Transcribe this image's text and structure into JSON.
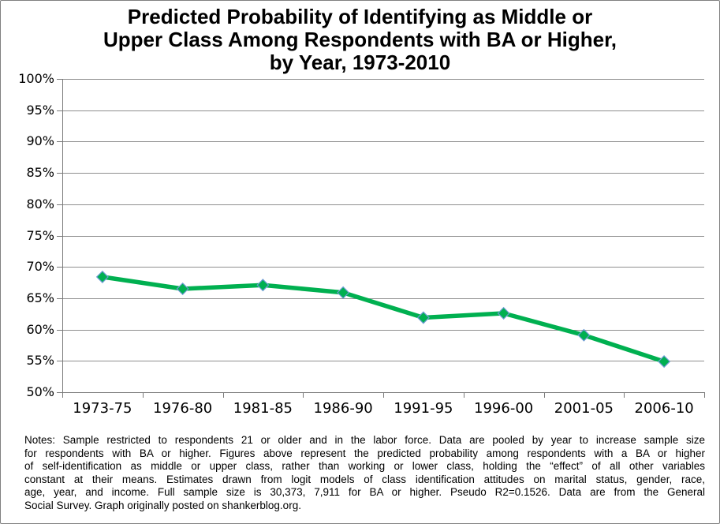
{
  "title": {
    "lines": [
      "Predicted Probability of Identifying as Middle or",
      "Upper Class Among Respondents with BA or Higher,",
      "by Year, 1973-2010"
    ]
  },
  "chart_data": {
    "type": "line",
    "title": "Predicted Probability of Identifying as Middle or Upper Class Among Respondents with BA or Higher, by Year, 1973-2010",
    "categories": [
      "1973-75",
      "1976-80",
      "1981-85",
      "1986-90",
      "1991-95",
      "1996-00",
      "2001-05",
      "2006-10"
    ],
    "values": [
      68.4,
      66.5,
      67.1,
      65.9,
      61.9,
      62.6,
      59.1,
      54.9
    ],
    "unit": "%",
    "ylim": [
      50,
      100
    ],
    "ytick_step": 5,
    "ytick_labels": [
      "100%",
      "95%",
      "90%",
      "85%",
      "80%",
      "75%",
      "70%",
      "65%",
      "60%",
      "55%",
      "50%"
    ],
    "xlabel": "",
    "ylabel": "",
    "grid": "horizontal",
    "legend": "none",
    "line_color": "#00B050",
    "marker": "diamond",
    "marker_border_color": "#6D9BD3"
  },
  "colors": {
    "background": "#FFFFFF",
    "frame_border": "#808080",
    "gridline": "#8F8F8F",
    "axis": "#7A7A7A",
    "text": "#000000"
  },
  "notes": {
    "lines": [
      "Notes: Sample restricted to respondents 21 or older and in the labor force. Data are pooled by year to increase sample size",
      "for respondents with BA or higher. Figures above represent the predicted probability among respondents with a BA or higher",
      "of self-identification as middle or upper class, rather than working or lower class, holding the “effect” of all other variables",
      "constant at their means. Estimates drawn from logit models of class identification attitudes on marital status, gender, race,",
      "age, year, and income. Full sample size is 30,373, 7,911 for BA or higher. Pseudo R2=0.1526. Data are from the General",
      "Social Survey. Graph originally posted on shankerblog.org."
    ]
  }
}
